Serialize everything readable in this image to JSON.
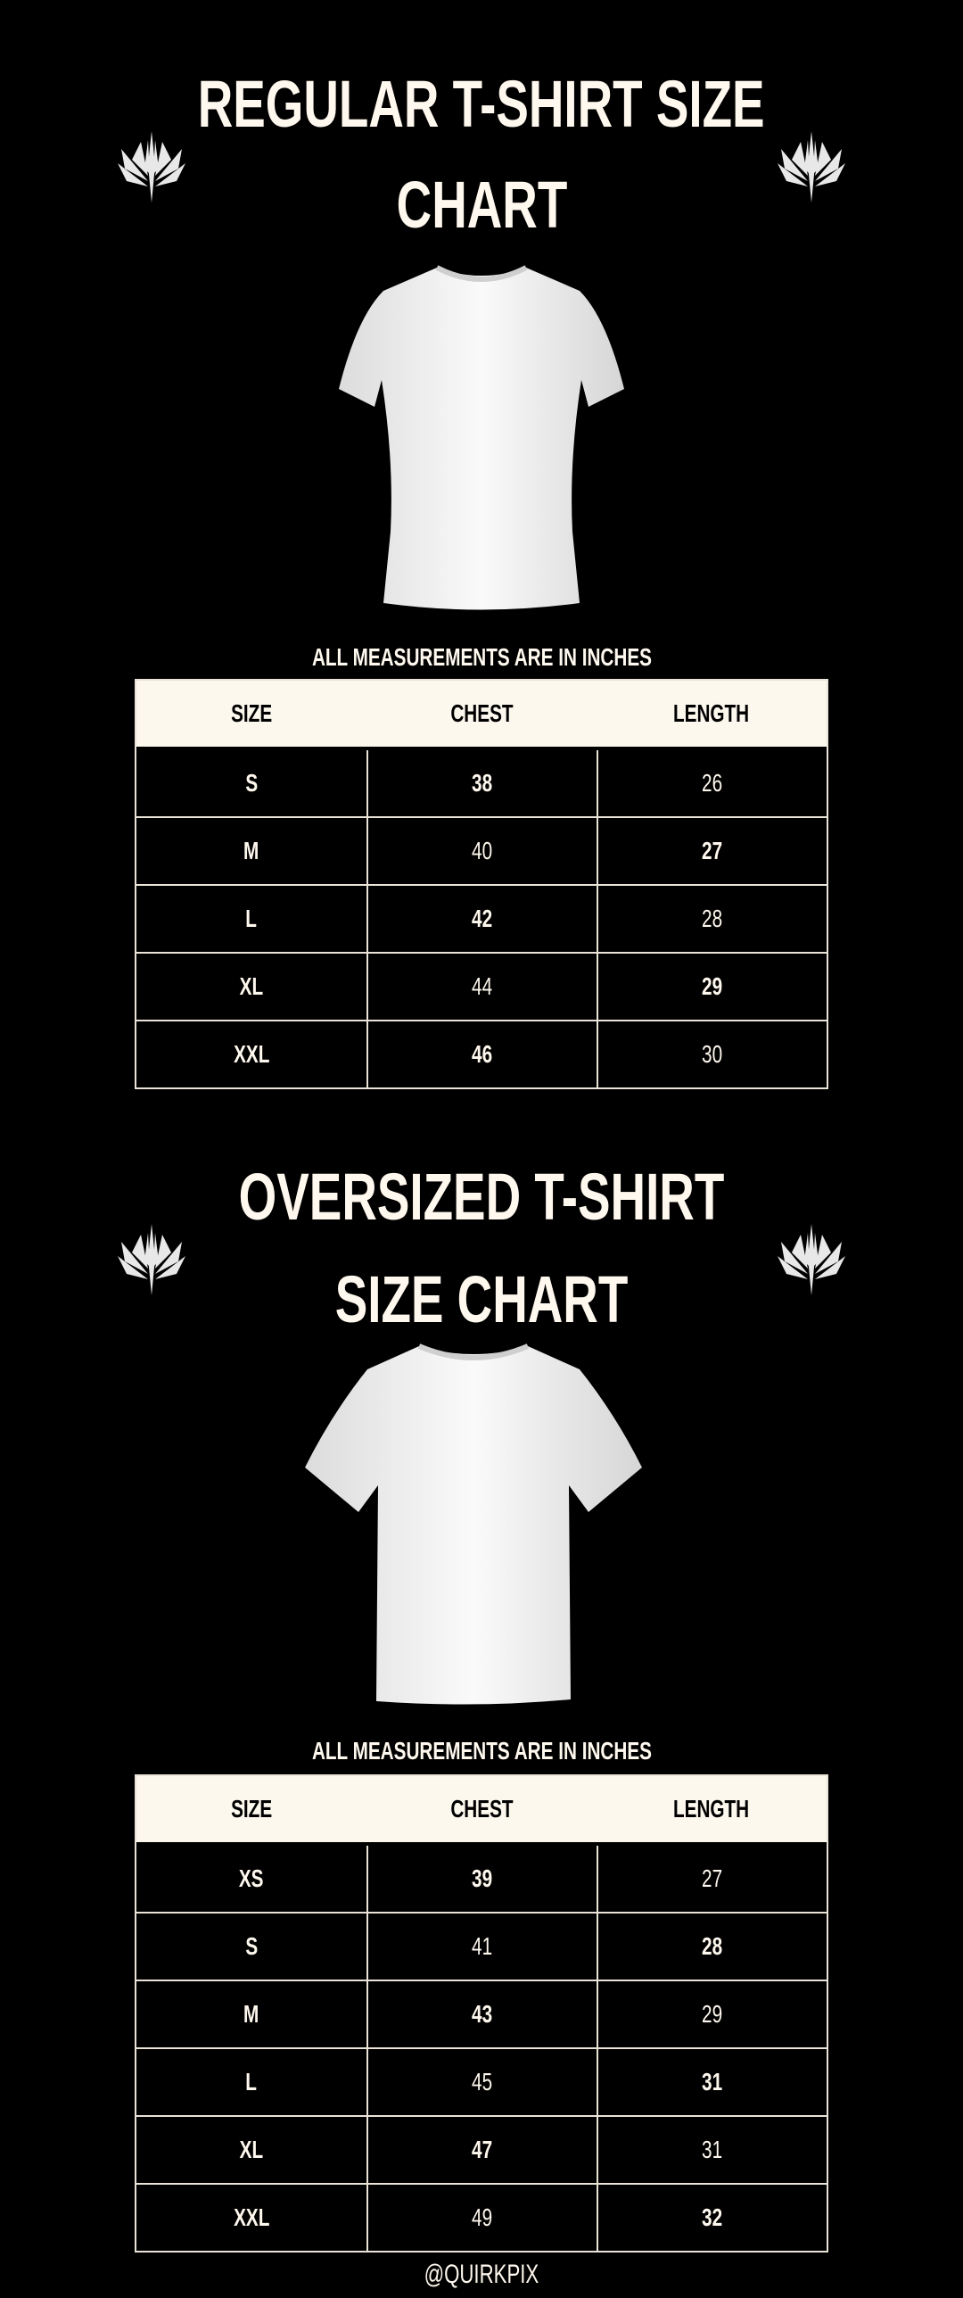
{
  "colors": {
    "background": "#000000",
    "text": "#fff8ee",
    "header_bg": "#fdf8ee",
    "border": "#e9e3d8"
  },
  "regular": {
    "title_line1": "REGULAR T-SHIRT SIZE",
    "title_line2": "CHART",
    "note": "ALL MEASUREMENTS ARE IN INCHES",
    "headers": [
      "SIZE",
      "CHEST",
      "LENGTH"
    ],
    "rows": [
      [
        "S",
        "38",
        "26"
      ],
      [
        "M",
        "40",
        "27"
      ],
      [
        "L",
        "42",
        "28"
      ],
      [
        "XL",
        "44",
        "29"
      ],
      [
        "XXL",
        "46",
        "30"
      ]
    ]
  },
  "oversized": {
    "title_line1": "OVERSIZED T-SHIRT",
    "title_line2": "SIZE CHART",
    "note": "ALL MEASUREMENTS ARE IN INCHES",
    "headers": [
      "SIZE",
      "CHEST",
      "LENGTH"
    ],
    "rows": [
      [
        "XS",
        "39",
        "27"
      ],
      [
        "S",
        "41",
        "28"
      ],
      [
        "M",
        "43",
        "29"
      ],
      [
        "L",
        "45",
        "31"
      ],
      [
        "XL",
        "47",
        "31"
      ],
      [
        "XXL",
        "49",
        "32"
      ]
    ]
  },
  "icons": {
    "emblem": "winged-emblem-icon",
    "product": "white-t-shirt-image"
  },
  "footer": {
    "handle": "@QUIRKPIX"
  }
}
